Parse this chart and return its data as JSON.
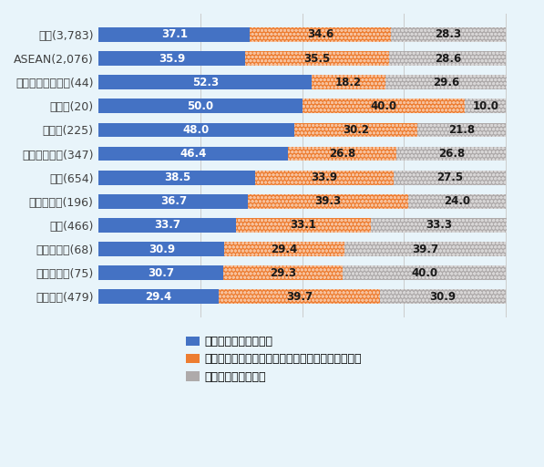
{
  "categories": [
    "総数(3,783)",
    "ASEAN(2,076)",
    "ニュージーランド(44)",
    "ラオス(20)",
    "インド(225)",
    "シンガポール(347)",
    "中国(654)",
    "マレーシア(196)",
    "タイ(466)",
    "カンボジア(68)",
    "ミャンマー(75)",
    "ベトナム(479)"
  ],
  "already": [
    37.1,
    35.9,
    52.3,
    50.0,
    48.0,
    46.4,
    38.5,
    36.7,
    33.7,
    30.9,
    30.7,
    29.4
  ],
  "planned": [
    34.6,
    35.5,
    18.2,
    40.0,
    30.2,
    26.8,
    33.9,
    39.3,
    33.1,
    29.4,
    29.3,
    39.7
  ],
  "not_planned": [
    28.3,
    28.6,
    29.6,
    10.0,
    21.8,
    26.8,
    27.5,
    24.0,
    33.3,
    39.7,
    40.0,
    30.9
  ],
  "color_already": "#4472C4",
  "color_planned": "#ED7D31",
  "color_not_planned": "#AEAAAA",
  "legend_already": "すでに取り組んでいる",
  "legend_planned": "まだ取り組んでいないが、今後取り組む予定がある",
  "legend_not_planned": "取り組む予定はない",
  "background_color": "#E8F4FA",
  "bar_height": 0.6,
  "fontsize_label": 9,
  "fontsize_bar": 8.5
}
